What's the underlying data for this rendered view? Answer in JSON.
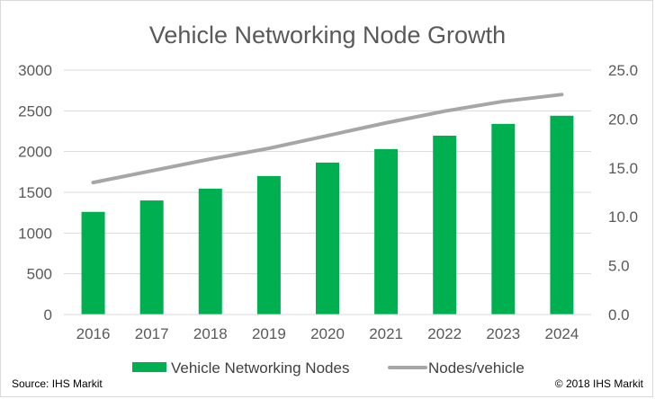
{
  "chart_data": {
    "type": "bar",
    "title": "Vehicle Networking Node Growth",
    "categories": [
      "2016",
      "2017",
      "2018",
      "2019",
      "2020",
      "2021",
      "2022",
      "2023",
      "2024"
    ],
    "series": [
      {
        "name": "Vehicle Networking Nodes",
        "type": "bar",
        "axis": "left",
        "color": "#00b050",
        "values": [
          1260,
          1400,
          1545,
          1700,
          1865,
          2030,
          2195,
          2340,
          2440
        ]
      },
      {
        "name": "Nodes/vehicle",
        "type": "line",
        "axis": "right",
        "color": "#a6a6a6",
        "values": [
          13.5,
          14.7,
          15.9,
          17.0,
          18.3,
          19.6,
          20.8,
          21.8,
          22.5
        ]
      }
    ],
    "y_left": {
      "min": 0,
      "max": 3000,
      "step": 500,
      "tick_labels": [
        "0",
        "500",
        "1000",
        "1500",
        "2000",
        "2500",
        "3000"
      ]
    },
    "y_right": {
      "min": 0,
      "max": 25,
      "step": 5,
      "tick_labels": [
        "0.0",
        "5.0",
        "10.0",
        "15.0",
        "20.0",
        "25.0"
      ]
    },
    "grid": true,
    "legend": "bottom-center"
  },
  "footer": {
    "source": "Source: IHS Markit",
    "copyright": "© 2018 IHS Markit"
  }
}
